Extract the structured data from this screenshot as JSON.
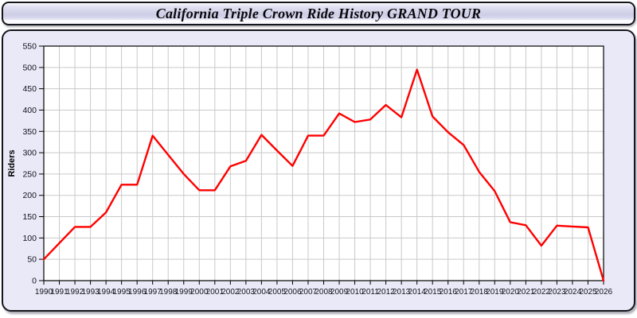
{
  "header": {
    "title": "California Triple Crown Ride History GRAND TOUR"
  },
  "chart_data": {
    "type": "line",
    "title": "California Triple Crown Ride History GRAND TOUR",
    "xlabel": "",
    "ylabel": "Riders",
    "ylim": [
      0,
      550
    ],
    "ytick_step": 50,
    "grid": true,
    "legend": false,
    "line_color": "#ff0000",
    "plot_bg": "#ffffff",
    "panel_bg": "#e9e9f7",
    "grid_color": "#c9c9c9",
    "axis_color": "#000000",
    "tick_label_color": "#14141e",
    "x": [
      1990,
      1991,
      1992,
      1993,
      1994,
      1995,
      1996,
      1997,
      1998,
      1999,
      2000,
      2001,
      2002,
      2003,
      2004,
      2005,
      2006,
      2007,
      2008,
      2009,
      2010,
      2011,
      2012,
      2013,
      2014,
      2015,
      2016,
      2017,
      2018,
      2019,
      2020,
      2021,
      2022,
      2023,
      2024,
      2025,
      2026
    ],
    "series": [
      {
        "name": "Riders",
        "values": [
          50,
          88,
          126,
          126,
          160,
          225,
          225,
          340,
          295,
          250,
          212,
          212,
          268,
          281,
          342,
          305,
          269,
          340,
          340,
          392,
          372,
          378,
          412,
          383,
          495,
          385,
          348,
          318,
          255,
          210,
          137,
          130,
          82,
          129,
          127,
          125,
          0
        ]
      }
    ]
  }
}
